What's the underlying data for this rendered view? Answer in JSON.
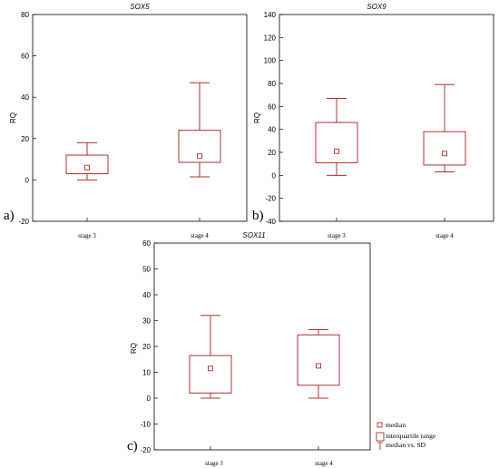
{
  "chart_data": [
    {
      "type": "box",
      "panel_label": "a)",
      "title": "SOX5",
      "ylabel": "RQ",
      "ylim": [
        -20,
        80
      ],
      "yticks": [
        -20,
        0,
        20,
        40,
        60,
        80
      ],
      "categories": [
        "stage 3",
        "stage 4"
      ],
      "boxes": [
        {
          "median": 6,
          "q1": 3,
          "q3": 12,
          "low": 0,
          "high": 18
        },
        {
          "median": 11.5,
          "q1": 8.5,
          "q3": 24,
          "low": 1.5,
          "high": 47
        }
      ]
    },
    {
      "type": "box",
      "panel_label": "b)",
      "title": "SOX9",
      "ylabel": "RQ",
      "ylim": [
        -40,
        140
      ],
      "yticks": [
        -40,
        -20,
        0,
        20,
        40,
        60,
        80,
        100,
        120,
        140
      ],
      "categories": [
        "stage 3",
        "stage 4"
      ],
      "boxes": [
        {
          "median": 21,
          "q1": 11,
          "q3": 46,
          "low": 0,
          "high": 67
        },
        {
          "median": 19,
          "q1": 9,
          "q3": 38,
          "low": 3,
          "high": 79
        }
      ]
    },
    {
      "type": "box",
      "panel_label": "c)",
      "title": "SOX11",
      "ylabel": "RQ",
      "ylim": [
        -20,
        60
      ],
      "yticks": [
        -20,
        -10,
        0,
        10,
        20,
        30,
        40,
        50,
        60
      ],
      "categories": [
        "stage 3",
        "stage 4"
      ],
      "boxes": [
        {
          "median": 11.5,
          "q1": 2,
          "q3": 16.5,
          "low": 0,
          "high": 32
        },
        {
          "median": 12.5,
          "q1": 5,
          "q3": 24.5,
          "low": 0,
          "high": 26.5
        }
      ]
    }
  ],
  "legend": {
    "items": [
      {
        "icon": "median-square-icon",
        "label": "median"
      },
      {
        "icon": "box-icon",
        "label": "interquartile range"
      },
      {
        "icon": "whisker-icon",
        "label": "median vs. SD"
      }
    ]
  },
  "colors": {
    "box": "#b03030",
    "axis": "#000000"
  }
}
